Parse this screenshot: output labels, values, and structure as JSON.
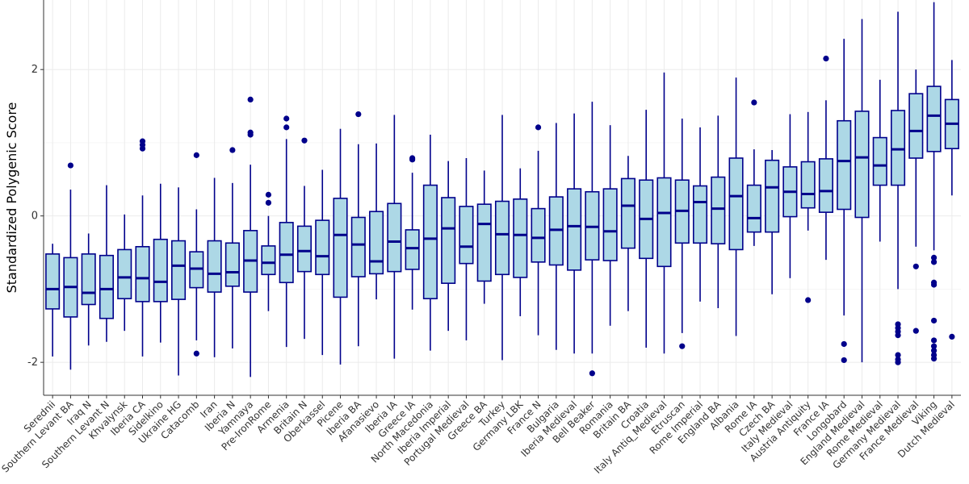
{
  "chart_data": {
    "type": "boxplot",
    "ylabel": "Standardized Polygenic Score",
    "yticks": [
      -2,
      0,
      2
    ],
    "ylim": [
      -2.45,
      2.95
    ],
    "grid": true,
    "colors": {
      "box_fill": "#add8e6",
      "box_stroke": "#00008b",
      "median": "#00008b",
      "outlier": "#00008b",
      "grid": "#ebebeb"
    },
    "groups": [
      {
        "label": "Serednii",
        "whisker_low": -1.92,
        "q1": -1.27,
        "median": -1.0,
        "q3": -0.52,
        "whisker_high": -0.38,
        "outliers": []
      },
      {
        "label": "Southern Levant BA",
        "whisker_low": -2.1,
        "q1": -1.38,
        "median": -0.97,
        "q3": -0.57,
        "whisker_high": 0.36,
        "outliers": [
          0.69
        ]
      },
      {
        "label": "Iraq N",
        "whisker_low": -1.77,
        "q1": -1.21,
        "median": -1.05,
        "q3": -0.52,
        "whisker_high": -0.24,
        "outliers": []
      },
      {
        "label": "Southern Levant N",
        "whisker_low": -1.72,
        "q1": -1.4,
        "median": -1.0,
        "q3": -0.54,
        "whisker_high": 0.42,
        "outliers": []
      },
      {
        "label": "Khvalynsk",
        "whisker_low": -1.57,
        "q1": -1.13,
        "median": -0.84,
        "q3": -0.46,
        "whisker_high": 0.02,
        "outliers": []
      },
      {
        "label": "Iberia CA",
        "whisker_low": -1.92,
        "q1": -1.17,
        "median": -0.85,
        "q3": -0.42,
        "whisker_high": 0.28,
        "outliers": [
          0.92,
          0.97,
          1.02
        ]
      },
      {
        "label": "Sidelkino",
        "whisker_low": -1.73,
        "q1": -1.17,
        "median": -0.9,
        "q3": -0.32,
        "whisker_high": 0.44,
        "outliers": []
      },
      {
        "label": "Ukraine HG",
        "whisker_low": -2.18,
        "q1": -1.14,
        "median": -0.68,
        "q3": -0.34,
        "whisker_high": 0.39,
        "outliers": []
      },
      {
        "label": "Catacomb",
        "whisker_low": -1.7,
        "q1": -0.98,
        "median": -0.72,
        "q3": -0.49,
        "whisker_high": 0.09,
        "outliers": [
          0.83,
          -1.88
        ]
      },
      {
        "label": "Iran",
        "whisker_low": -1.93,
        "q1": -1.04,
        "median": -0.79,
        "q3": -0.34,
        "whisker_high": 0.52,
        "outliers": []
      },
      {
        "label": "Iberia N",
        "whisker_low": -1.81,
        "q1": -0.96,
        "median": -0.77,
        "q3": -0.37,
        "whisker_high": 0.45,
        "outliers": [
          0.9
        ]
      },
      {
        "label": "Yamnaya",
        "whisker_low": -2.2,
        "q1": -1.04,
        "median": -0.61,
        "q3": -0.2,
        "whisker_high": 0.7,
        "outliers": [
          1.11,
          1.14,
          1.59
        ]
      },
      {
        "label": "Pre-IronRome",
        "whisker_low": -1.3,
        "q1": -0.8,
        "median": -0.64,
        "q3": -0.41,
        "whisker_high": 0.0,
        "outliers": [
          0.18,
          0.29
        ]
      },
      {
        "label": "Armenia",
        "whisker_low": -1.79,
        "q1": -0.91,
        "median": -0.53,
        "q3": -0.09,
        "whisker_high": 1.05,
        "outliers": [
          1.21,
          1.33
        ]
      },
      {
        "label": "Britain N",
        "whisker_low": -1.68,
        "q1": -0.76,
        "median": -0.48,
        "q3": -0.14,
        "whisker_high": 0.41,
        "outliers": [
          1.03
        ]
      },
      {
        "label": "Oberkassel",
        "whisker_low": -1.9,
        "q1": -0.8,
        "median": -0.55,
        "q3": -0.06,
        "whisker_high": 0.63,
        "outliers": []
      },
      {
        "label": "Picene",
        "whisker_low": -2.03,
        "q1": -1.11,
        "median": -0.26,
        "q3": 0.24,
        "whisker_high": 1.19,
        "outliers": []
      },
      {
        "label": "Iberia BA",
        "whisker_low": -1.78,
        "q1": -0.83,
        "median": -0.39,
        "q3": -0.02,
        "whisker_high": 0.98,
        "outliers": [
          1.39
        ]
      },
      {
        "label": "Afanasievo",
        "whisker_low": -1.14,
        "q1": -0.79,
        "median": -0.62,
        "q3": 0.06,
        "whisker_high": 0.99,
        "outliers": []
      },
      {
        "label": "Iberia IA",
        "whisker_low": -1.95,
        "q1": -0.76,
        "median": -0.35,
        "q3": 0.17,
        "whisker_high": 1.38,
        "outliers": []
      },
      {
        "label": "Greece IA",
        "whisker_low": -1.28,
        "q1": -0.73,
        "median": -0.44,
        "q3": -0.19,
        "whisker_high": 0.59,
        "outliers": [
          0.77,
          0.79
        ]
      },
      {
        "label": "North Macedonia",
        "whisker_low": -1.84,
        "q1": -1.13,
        "median": -0.31,
        "q3": 0.42,
        "whisker_high": 1.11,
        "outliers": []
      },
      {
        "label": "Iberia Imperial",
        "whisker_low": -1.57,
        "q1": -0.92,
        "median": -0.17,
        "q3": 0.25,
        "whisker_high": 0.75,
        "outliers": []
      },
      {
        "label": "Portugal Medieval",
        "whisker_low": -1.7,
        "q1": -0.65,
        "median": -0.42,
        "q3": 0.13,
        "whisker_high": 0.79,
        "outliers": []
      },
      {
        "label": "Greece BA",
        "whisker_low": -1.2,
        "q1": -0.89,
        "median": -0.11,
        "q3": 0.16,
        "whisker_high": 0.62,
        "outliers": []
      },
      {
        "label": "Turkey",
        "whisker_low": -1.97,
        "q1": -0.8,
        "median": -0.25,
        "q3": 0.2,
        "whisker_high": 1.38,
        "outliers": []
      },
      {
        "label": "Germany LBK",
        "whisker_low": -1.37,
        "q1": -0.84,
        "median": -0.26,
        "q3": 0.23,
        "whisker_high": 0.65,
        "outliers": []
      },
      {
        "label": "France N",
        "whisker_low": -1.63,
        "q1": -0.63,
        "median": -0.3,
        "q3": 0.1,
        "whisker_high": 0.89,
        "outliers": [
          1.21
        ]
      },
      {
        "label": "Bulgaria",
        "whisker_low": -1.83,
        "q1": -0.67,
        "median": -0.19,
        "q3": 0.26,
        "whisker_high": 1.27,
        "outliers": []
      },
      {
        "label": "Iberia Medieval",
        "whisker_low": -1.88,
        "q1": -0.74,
        "median": -0.14,
        "q3": 0.37,
        "whisker_high": 1.4,
        "outliers": []
      },
      {
        "label": "Bell Beaker",
        "whisker_low": -1.88,
        "q1": -0.6,
        "median": -0.15,
        "q3": 0.33,
        "whisker_high": 1.56,
        "outliers": [
          -2.15
        ]
      },
      {
        "label": "Romania",
        "whisker_low": -1.5,
        "q1": -0.61,
        "median": -0.21,
        "q3": 0.37,
        "whisker_high": 1.24,
        "outliers": []
      },
      {
        "label": "Britain BA",
        "whisker_low": -1.3,
        "q1": -0.44,
        "median": 0.14,
        "q3": 0.51,
        "whisker_high": 0.82,
        "outliers": []
      },
      {
        "label": "Croatia",
        "whisker_low": -1.8,
        "q1": -0.58,
        "median": -0.04,
        "q3": 0.49,
        "whisker_high": 1.45,
        "outliers": []
      },
      {
        "label": "Italy Antiq_Medieval",
        "whisker_low": -1.88,
        "q1": -0.69,
        "median": 0.04,
        "q3": 0.52,
        "whisker_high": 1.96,
        "outliers": []
      },
      {
        "label": "Etruscan",
        "whisker_low": -1.6,
        "q1": -0.37,
        "median": 0.07,
        "q3": 0.49,
        "whisker_high": 1.33,
        "outliers": [
          -1.78
        ]
      },
      {
        "label": "Rome Imperial",
        "whisker_low": -1.17,
        "q1": -0.37,
        "median": 0.19,
        "q3": 0.41,
        "whisker_high": 1.21,
        "outliers": []
      },
      {
        "label": "England BA",
        "whisker_low": -1.26,
        "q1": -0.38,
        "median": 0.1,
        "q3": 0.53,
        "whisker_high": 1.37,
        "outliers": []
      },
      {
        "label": "Albania",
        "whisker_low": -1.64,
        "q1": -0.46,
        "median": 0.27,
        "q3": 0.79,
        "whisker_high": 1.89,
        "outliers": []
      },
      {
        "label": "Rome IA",
        "whisker_low": -0.41,
        "q1": -0.22,
        "median": -0.03,
        "q3": 0.42,
        "whisker_high": 0.91,
        "outliers": [
          1.55
        ]
      },
      {
        "label": "Czech BA",
        "whisker_low": -1.07,
        "q1": -0.22,
        "median": 0.39,
        "q3": 0.76,
        "whisker_high": 0.9,
        "outliers": []
      },
      {
        "label": "Italy Medieval",
        "whisker_low": -0.85,
        "q1": -0.01,
        "median": 0.33,
        "q3": 0.67,
        "whisker_high": 1.39,
        "outliers": []
      },
      {
        "label": "Austria Antiquity",
        "whisker_low": -0.2,
        "q1": 0.11,
        "median": 0.3,
        "q3": 0.74,
        "whisker_high": 1.42,
        "outliers": [
          -1.15
        ]
      },
      {
        "label": "France IA",
        "whisker_low": -0.6,
        "q1": 0.05,
        "median": 0.34,
        "q3": 0.78,
        "whisker_high": 1.58,
        "outliers": [
          2.15
        ]
      },
      {
        "label": "Longobard",
        "whisker_low": -1.36,
        "q1": 0.09,
        "median": 0.75,
        "q3": 1.3,
        "whisker_high": 2.42,
        "outliers": [
          -1.75,
          -1.97
        ]
      },
      {
        "label": "England Medieval",
        "whisker_low": -2.0,
        "q1": -0.02,
        "median": 0.8,
        "q3": 1.43,
        "whisker_high": 2.69,
        "outliers": []
      },
      {
        "label": "Rome Medieval",
        "whisker_low": -0.35,
        "q1": 0.42,
        "median": 0.69,
        "q3": 1.07,
        "whisker_high": 1.86,
        "outliers": []
      },
      {
        "label": "Germany Medieval",
        "whisker_low": -1.0,
        "q1": 0.42,
        "median": 0.91,
        "q3": 1.44,
        "whisker_high": 2.79,
        "outliers": [
          -1.48,
          -1.53,
          -1.58,
          -1.63,
          -1.9,
          -1.96,
          -2.0
        ]
      },
      {
        "label": "France Medieval",
        "whisker_low": -0.42,
        "q1": 0.79,
        "median": 1.16,
        "q3": 1.67,
        "whisker_high": 2.0,
        "outliers": [
          -0.69,
          -1.57
        ]
      },
      {
        "label": "Viking",
        "whisker_low": -0.47,
        "q1": 0.88,
        "median": 1.37,
        "q3": 1.77,
        "whisker_high": 2.92,
        "outliers": [
          -0.57,
          -0.63,
          -0.91,
          -0.94,
          -1.43,
          -1.7,
          -1.78,
          -1.84,
          -1.9,
          -1.95
        ]
      },
      {
        "label": "Dutch Medieval",
        "whisker_low": 0.28,
        "q1": 0.92,
        "median": 1.26,
        "q3": 1.59,
        "whisker_high": 2.13,
        "outliers": [
          -1.65
        ]
      }
    ]
  }
}
